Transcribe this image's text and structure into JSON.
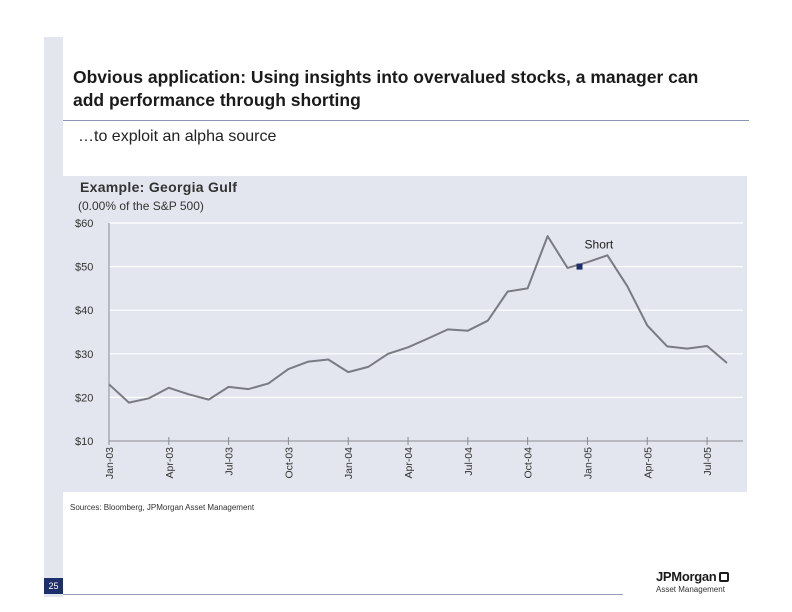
{
  "slide": {
    "title": "Obvious application:  Using insights into overvalued stocks, a manager can add performance through shorting",
    "subtitle": "…to exploit an alpha source",
    "example_title": "Example: Georgia Gulf",
    "example_subtitle": "(0.00% of the S&P 500)",
    "sources": "Sources: Bloomberg, JPMorgan Asset Management",
    "page_number": "25",
    "logo_name": "JPMorgan",
    "logo_sub": "Asset Management"
  },
  "colors": {
    "line": "#7a7a82",
    "axis": "#8a8a90",
    "marker": "#1d2f6b",
    "chart_bg": "#e4e6ef",
    "accent": "#1d2f6b"
  },
  "chart_data": {
    "type": "line",
    "ylim": [
      10,
      60
    ],
    "y_ticks": [
      10,
      20,
      30,
      40,
      50,
      60
    ],
    "y_tick_labels": [
      "$10",
      "$20",
      "$30",
      "$40",
      "$50",
      "$60"
    ],
    "x_tick_labels": [
      "Jan-03",
      "Apr-03",
      "Jul-03",
      "Oct-03",
      "Jan-04",
      "Apr-04",
      "Jul-04",
      "Oct-04",
      "Jan-05",
      "Apr-05",
      "Jul-05"
    ],
    "x_range": [
      "2003-01",
      "2005-08"
    ],
    "grid": "horizontal",
    "series": [
      {
        "x": [
          "2003-01",
          "2003-02",
          "2003-03",
          "2003-04",
          "2003-05",
          "2003-06",
          "2003-07",
          "2003-08",
          "2003-09",
          "2003-10",
          "2003-11",
          "2003-12",
          "2004-01",
          "2004-02",
          "2004-03",
          "2004-04",
          "2004-05",
          "2004-06",
          "2004-07",
          "2004-08",
          "2004-09",
          "2004-10",
          "2004-11",
          "2004-12",
          "2005-01",
          "2005-02",
          "2005-03",
          "2005-04",
          "2005-05",
          "2005-06",
          "2005-07",
          "2005-08"
        ],
        "values": [
          23,
          18.8,
          19.8,
          22.2,
          20.7,
          19.5,
          22.4,
          21.9,
          23.2,
          26.5,
          28.2,
          28.7,
          25.8,
          27,
          30,
          31.5,
          33.5,
          35.6,
          35.3,
          37.6,
          44.3,
          45,
          57,
          49.7,
          51,
          52.6,
          45.5,
          36.5,
          31.7,
          31.2,
          31.8,
          27.9
        ]
      }
    ],
    "annotations": [
      {
        "text": "Short",
        "x": "2004-12",
        "y": 50
      }
    ]
  }
}
